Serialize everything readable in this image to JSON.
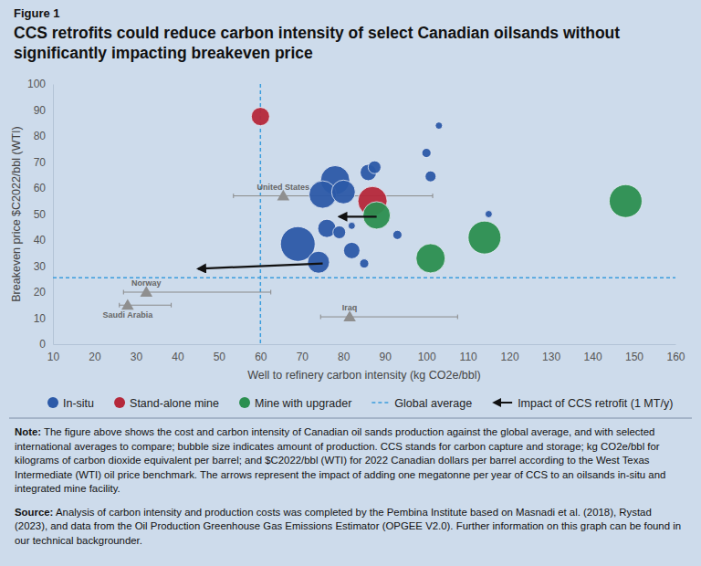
{
  "chart_data": {
    "type": "scatter",
    "figure_label": "Figure 1",
    "title": "CCS retrofits could reduce carbon intensity of select Canadian oilsands without significantly impacting breakeven price",
    "x_label": "Well to refinery carbon intensity (kg CO2e/bbl)",
    "y_label": "Breakeven price $C2022/bbl (WTI)",
    "xlim": [
      10,
      160
    ],
    "xticks": [
      10,
      20,
      30,
      40,
      50,
      60,
      70,
      80,
      90,
      100,
      110,
      120,
      130,
      140,
      150,
      160
    ],
    "ylim": [
      0,
      100
    ],
    "yticks": [
      0,
      10,
      20,
      30,
      40,
      50,
      60,
      70,
      80,
      90,
      100
    ],
    "grid": false,
    "legend": "bottom",
    "series": [
      {
        "name": "In-situ",
        "color": "#2c5aa8",
        "marker": "circle",
        "x": [
          103,
          100,
          101,
          78,
          86,
          87.5,
          75,
          80,
          115,
          76,
          79,
          82,
          93,
          69,
          74,
          82,
          85
        ],
        "values": [
          84,
          73.5,
          64.5,
          63,
          66,
          68,
          57.5,
          58.5,
          50,
          44.5,
          43,
          45.5,
          42,
          38.5,
          31.5,
          36,
          31
        ],
        "sizes": [
          13,
          21,
          30,
          213,
          67,
          41,
          187,
          140,
          13,
          83,
          41,
          13,
          21,
          300,
          120,
          67,
          21
        ]
      },
      {
        "name": "Stand-alone mine",
        "color": "#b5283a",
        "marker": "circle",
        "x": [
          60,
          87
        ],
        "values": [
          87.5,
          55
        ],
        "sizes": [
          83,
          213
        ]
      },
      {
        "name": "Mine with upgrader",
        "color": "#2b8f50",
        "marker": "circle",
        "x": [
          88,
          148,
          114,
          101
        ],
        "values": [
          49.5,
          55,
          41,
          33
        ],
        "sizes": [
          187,
          269,
          269,
          213
        ]
      }
    ],
    "global_average": {
      "name": "Global average",
      "x": 60,
      "y": 25.5,
      "color": "#3b9ddd",
      "line_style": "dashed"
    },
    "arrows": {
      "name": "Impact of CCS retrofit (1 MT/y)",
      "color": "#111111",
      "segments": [
        {
          "x": [
            88,
            79
          ],
          "y": [
            49,
            49
          ]
        },
        {
          "x": [
            75,
            45
          ],
          "y": [
            31,
            29
          ]
        }
      ]
    },
    "benchmarks": [
      {
        "name": "United States",
        "x": 65.5,
        "y": 57,
        "x_low": 53.5,
        "x_high": 101.5
      },
      {
        "name": "Norway",
        "x": 32.5,
        "y": 20,
        "x_low": 27,
        "x_high": 62.5
      },
      {
        "name": "Saudi Arabia",
        "x": 28,
        "y": 15,
        "x_low": 26,
        "x_high": 38.5
      },
      {
        "name": "Iraq",
        "x": 81.5,
        "y": 10.5,
        "x_low": 74.5,
        "x_high": 107.5
      }
    ],
    "note_label": "Note:",
    "note": "The figure above shows the cost and carbon intensity of Canadian oil sands production against the global average, and with selected international averages to compare; bubble size indicates amount of production. CCS stands for carbon capture and storage; kg CO2e/bbl for kilograms of carbon dioxide equivalent per barrel; and $C2022/bbl (WTI) for 2022 Canadian dollars per barrel according to the West Texas Intermediate (WTI) oil price benchmark. The arrows represent the impact of adding one megatonne per year of CCS to an oilsands in-situ and integrated mine facility.",
    "source_label": "Source:",
    "source": "Analysis of carbon intensity and production costs was completed by the Pembina Institute based on Masnadi et al. (2018), Rystad (2023), and data from the Oil Production Greenhouse Gas Emissions Estimator (OPGEE V2.0). Further information on this graph can be found in our technical backgrounder."
  }
}
